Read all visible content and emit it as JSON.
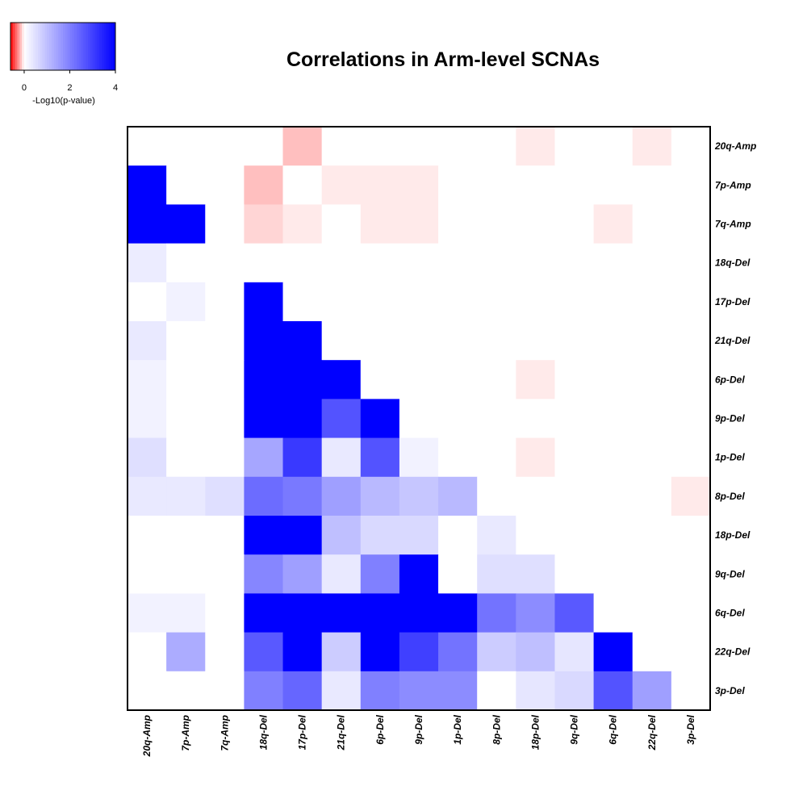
{
  "chart_data": {
    "type": "heatmap",
    "title": "Correlations in Arm-level SCNAs",
    "rows": [
      "20q-Amp",
      "7p-Amp",
      "7q-Amp",
      "18q-Del",
      "17p-Del",
      "21q-Del",
      "6p-Del",
      "9p-Del",
      "1p-Del",
      "8p-Del",
      "18p-Del",
      "9q-Del",
      "6q-Del",
      "22q-Del",
      "3p-Del"
    ],
    "columns": [
      "20q-Amp",
      "7p-Amp",
      "7q-Amp",
      "18q-Del",
      "17p-Del",
      "21q-Del",
      "6p-Del",
      "9p-Del",
      "1p-Del",
      "8p-Del",
      "18p-Del",
      "9q-Del",
      "6q-Del",
      "22q-Del",
      "3p-Del"
    ],
    "values": [
      [
        0,
        0,
        0,
        0,
        -0.15,
        0,
        0,
        0,
        0,
        0,
        -0.05,
        0,
        0,
        -0.05,
        0
      ],
      [
        4,
        0,
        0,
        -0.15,
        0,
        -0.05,
        -0.05,
        -0.05,
        0,
        0,
        0,
        0,
        0,
        0,
        0
      ],
      [
        4,
        4,
        0,
        -0.1,
        -0.05,
        0,
        -0.05,
        -0.05,
        0,
        0,
        0,
        0,
        -0.05,
        0,
        0
      ],
      [
        0.3,
        0,
        0,
        0,
        0,
        0,
        0,
        0,
        0,
        0,
        0,
        0,
        0,
        0,
        0
      ],
      [
        0,
        0.2,
        0,
        4,
        0,
        0,
        0,
        0,
        0,
        0,
        0,
        0,
        0,
        0,
        0
      ],
      [
        0.35,
        0,
        0,
        4,
        4,
        0,
        0,
        0,
        0,
        0,
        0,
        0,
        0,
        0,
        0
      ],
      [
        0.2,
        0,
        0,
        4,
        4,
        4,
        0,
        0,
        0,
        0,
        -0.05,
        0,
        0,
        0,
        0
      ],
      [
        0.2,
        0,
        0,
        4,
        4,
        2.7,
        4,
        0,
        0,
        0,
        0,
        0,
        0,
        0,
        0
      ],
      [
        0.5,
        0,
        0,
        1.4,
        3.1,
        0.35,
        2.7,
        0.2,
        0,
        0,
        -0.05,
        0,
        0,
        0,
        0
      ],
      [
        0.35,
        0.35,
        0.5,
        2.3,
        2.1,
        1.5,
        1.1,
        0.9,
        1.1,
        0,
        0,
        0,
        0,
        0,
        -0.05
      ],
      [
        0,
        0,
        0,
        4,
        4,
        1.0,
        0.6,
        0.6,
        0,
        0.35,
        0,
        0,
        0,
        0,
        0
      ],
      [
        0,
        0,
        0,
        1.9,
        1.5,
        0.35,
        2.0,
        4,
        0,
        0.5,
        0.5,
        0,
        0,
        0,
        0
      ],
      [
        0.2,
        0.2,
        0,
        4,
        4,
        4,
        4,
        4,
        4,
        2.2,
        1.8,
        2.6,
        0,
        0,
        0
      ],
      [
        0,
        1.3,
        0,
        2.6,
        4,
        0.8,
        4,
        3.0,
        2.2,
        0.8,
        1.0,
        0.4,
        4,
        0,
        0
      ],
      [
        0,
        0,
        0,
        2.0,
        2.4,
        0.35,
        2.0,
        1.8,
        1.8,
        0,
        0.4,
        0.6,
        2.7,
        1.5,
        0
      ]
    ],
    "colorbar": {
      "label": "-Log10(p-value)",
      "ticks": [
        "0",
        "2",
        "4"
      ],
      "range": [
        -0.6,
        4
      ]
    },
    "colors": {
      "negative": "#ff0000",
      "zero": "#ffffff",
      "positive": "#0000ff"
    }
  }
}
